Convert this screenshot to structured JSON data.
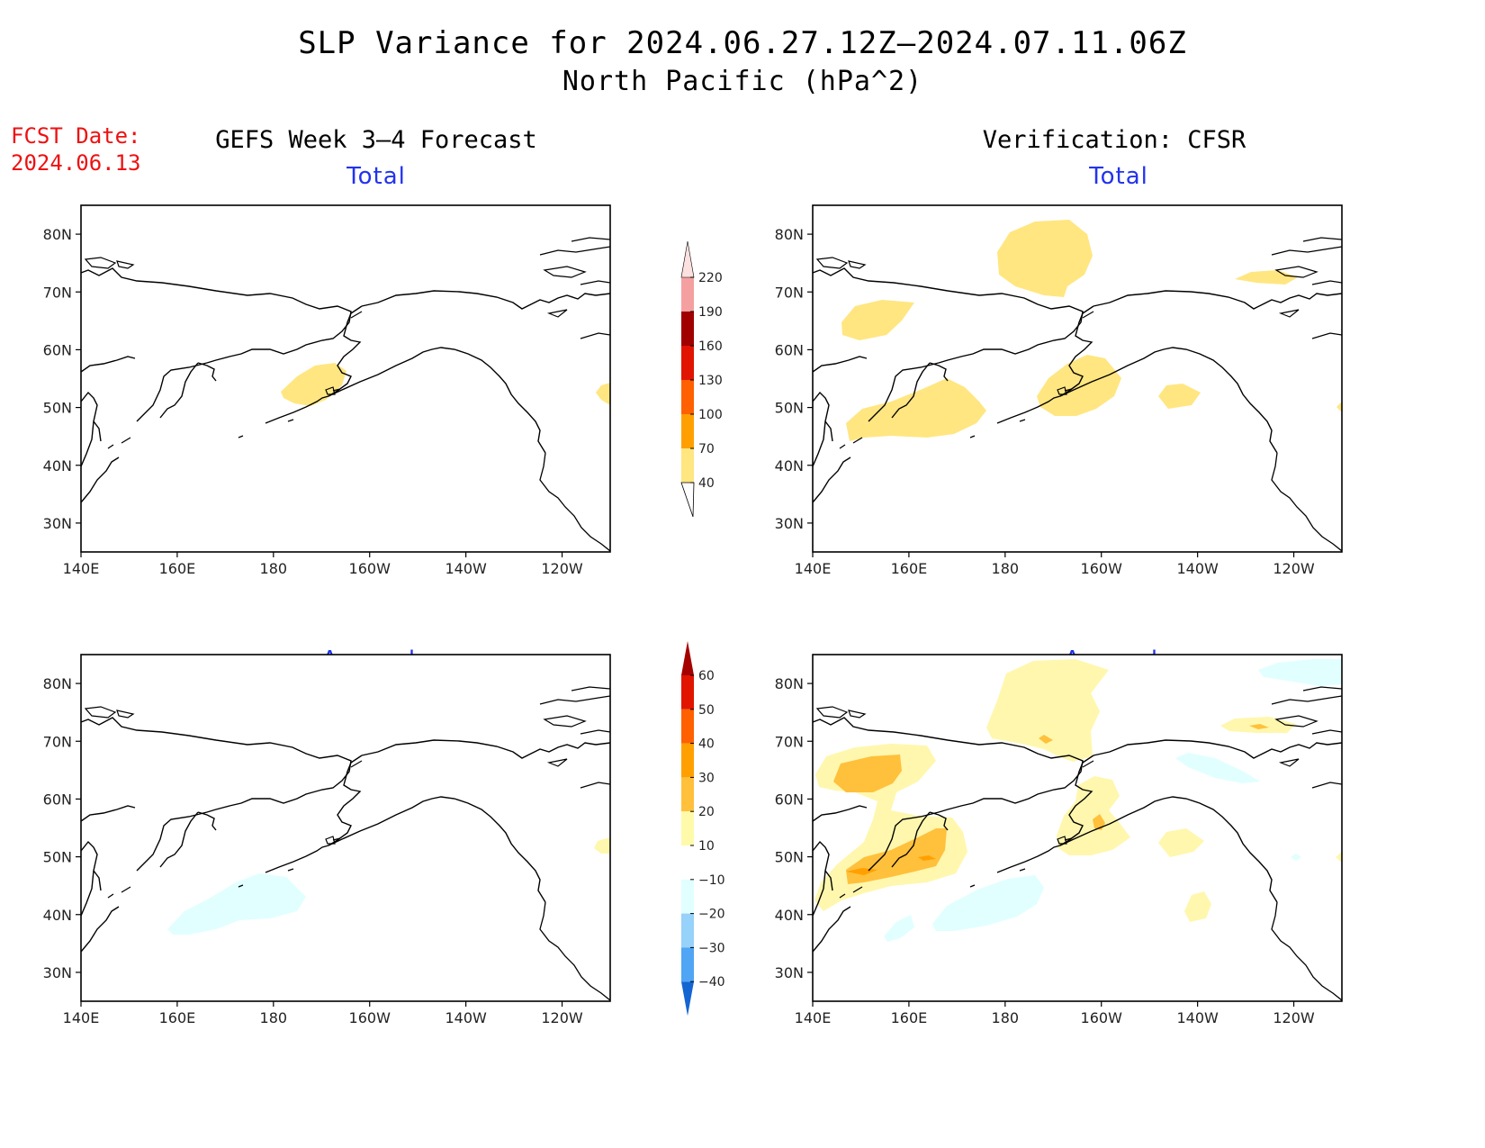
{
  "title": {
    "line1": "SLP Variance for 2024.06.27.12Z–2024.07.11.06Z",
    "line2": "North Pacific (hPa^2)"
  },
  "forecast_date": {
    "label": "FCST Date:",
    "value": "2024.06.13"
  },
  "columns": {
    "left": "GEFS Week 3–4 Forecast",
    "right": "Verification: CFSR"
  },
  "panel_titles": {
    "total": "Total",
    "anomaly": "Anomaly"
  },
  "axes": {
    "lat_labels": [
      "80N",
      "70N",
      "60N",
      "50N",
      "40N",
      "30N"
    ],
    "lat_values": [
      80,
      70,
      60,
      50,
      40,
      30
    ],
    "lon_labels": [
      "140E",
      "160E",
      "180",
      "160W",
      "140W",
      "120W"
    ],
    "lon_values": [
      140,
      160,
      180,
      200,
      220,
      240
    ],
    "lon_range": [
      140,
      250
    ],
    "lat_range": [
      25,
      85
    ]
  },
  "colorbar_total": {
    "labels": [
      "40",
      "70",
      "100",
      "130",
      "160",
      "190",
      "220"
    ],
    "colors": [
      "#ffe680",
      "#ffa000",
      "#ff6000",
      "#e01400",
      "#a00000",
      "#f4a0a0",
      "#fde0e0"
    ]
  },
  "colorbar_anomaly": {
    "labels": [
      "-40",
      "-30",
      "-20",
      "-10",
      "10",
      "20",
      "30",
      "40",
      "50",
      "60"
    ],
    "colors": [
      "#1464d2",
      "#1e6ee6",
      "#50a5f5",
      "#96d2fa",
      "#e1ffff",
      "#ffffff",
      "#fffaaa",
      "#ffc03c",
      "#ffa000",
      "#ff6000",
      "#e11400",
      "#a50000"
    ]
  },
  "shading_colors": {
    "light_yellow": "#fff7ad",
    "yellow": "#ffe680",
    "orange_light": "#ffc03c",
    "orange": "#ffa000",
    "cyan": "#e1ffff"
  }
}
